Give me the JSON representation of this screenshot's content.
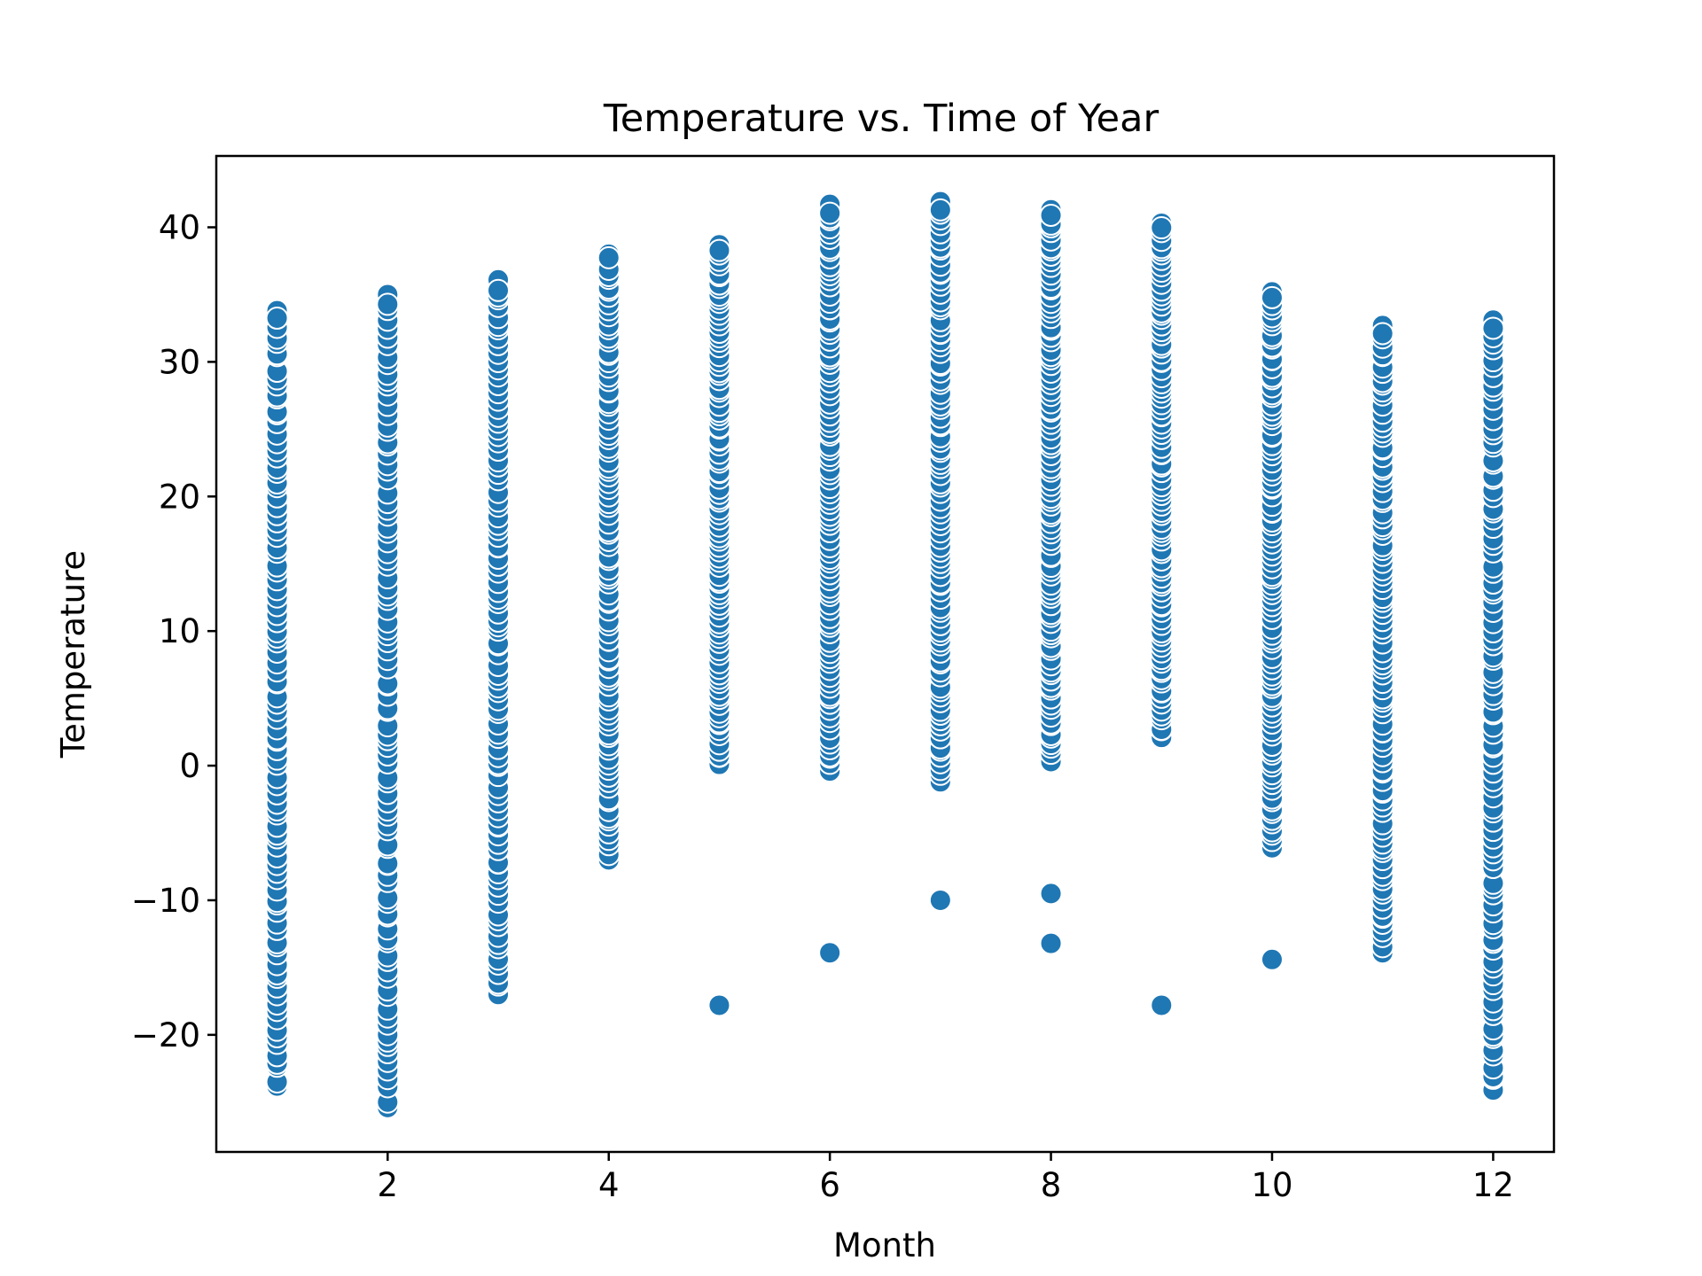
{
  "chart_data": {
    "type": "scatter",
    "title": "Temperature vs. Time of Year",
    "xlabel": "Month",
    "ylabel": "Temperature",
    "xlim": [
      0.45,
      12.55
    ],
    "ylim": [
      -28.7,
      45.3
    ],
    "xticks": [
      2,
      4,
      6,
      8,
      10,
      12
    ],
    "yticks": [
      -20,
      -10,
      0,
      10,
      20,
      30,
      40
    ],
    "xtick_labels": [
      "2",
      "4",
      "6",
      "8",
      "10",
      "12"
    ],
    "ytick_labels": [
      "−20",
      "−10",
      "0",
      "10",
      "20",
      "30",
      "40"
    ],
    "grid": false,
    "marker_color": "#1f77b4",
    "edge_color": "#ffffff",
    "months": [
      {
        "month": 1,
        "min": -23.8,
        "max": 33.8,
        "outliers": []
      },
      {
        "month": 2,
        "min": -25.4,
        "max": 35.0,
        "outliers": []
      },
      {
        "month": 3,
        "min": -17.0,
        "max": 36.1,
        "outliers": []
      },
      {
        "month": 4,
        "min": -7.0,
        "max": 38.0,
        "outliers": []
      },
      {
        "month": 5,
        "min": 0.1,
        "max": 38.7,
        "outliers": [
          -17.8
        ]
      },
      {
        "month": 6,
        "min": -0.4,
        "max": 41.7,
        "outliers": [
          -13.9
        ]
      },
      {
        "month": 7,
        "min": -1.2,
        "max": 41.9,
        "outliers": [
          -10.0
        ]
      },
      {
        "month": 8,
        "min": 0.3,
        "max": 41.3,
        "outliers": [
          -9.5,
          -13.2
        ]
      },
      {
        "month": 9,
        "min": 2.1,
        "max": 40.3,
        "outliers": [
          -17.8
        ]
      },
      {
        "month": 10,
        "min": -6.1,
        "max": 35.2,
        "outliers": [
          -14.4
        ]
      },
      {
        "month": 11,
        "min": -13.9,
        "max": 32.7,
        "outliers": []
      },
      {
        "month": 12,
        "min": -24.1,
        "max": 33.1,
        "outliers": []
      }
    ]
  }
}
